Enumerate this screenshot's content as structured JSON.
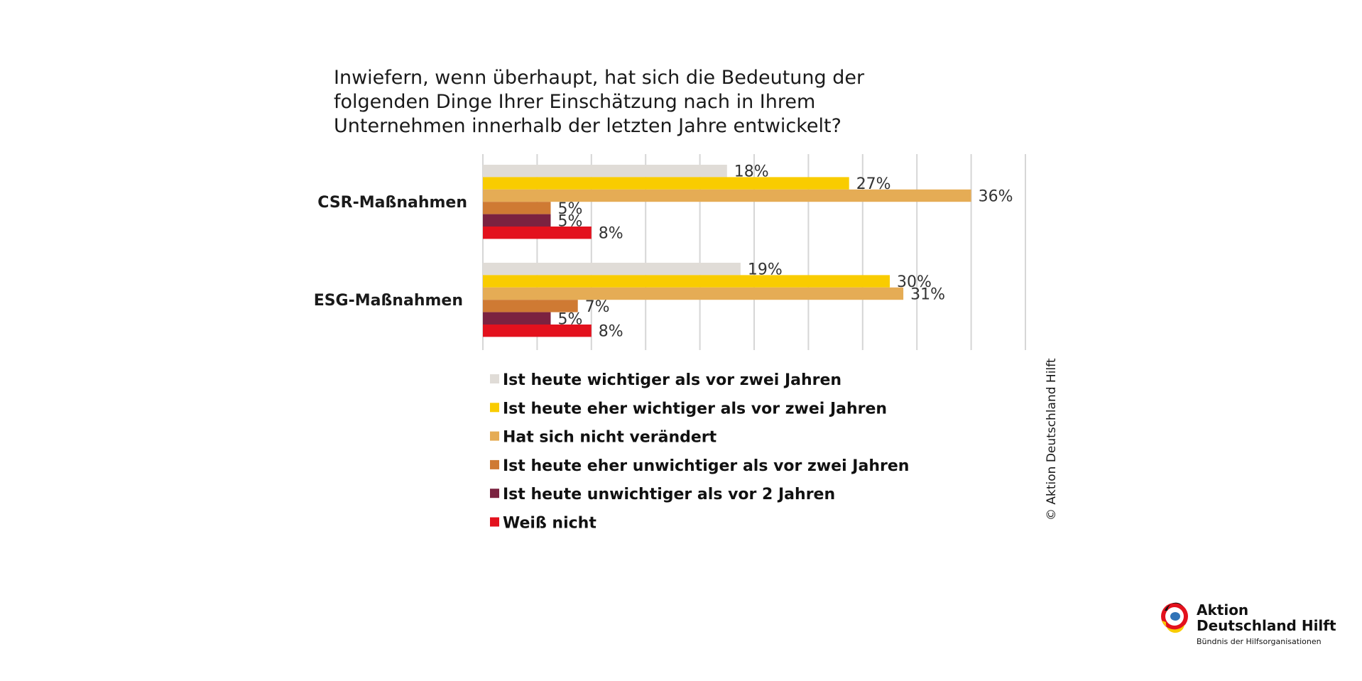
{
  "chart_data": {
    "type": "bar",
    "orientation": "horizontal",
    "title": "Inwiefern, wenn überhaupt, hat sich die Bedeutung der folgenden Dinge Ihrer Einschätzung nach in Ihrem Unternehmen innerhalb der letzten Jahre entwickelt?",
    "title_lines": [
      "Inwiefern, wenn überhaupt, hat sich die Bedeutung der",
      "folgenden Dinge Ihrer Einschätzung nach in Ihrem",
      "Unternehmen innerhalb der letzten Jahre entwickelt?"
    ],
    "categories": [
      "CSR-Maßnahmen",
      "ESG-Maßnahmen"
    ],
    "series": [
      {
        "name": "Ist heute wichtiger als vor zwei Jahren",
        "color": "#e0dcd7",
        "values": [
          18,
          19
        ]
      },
      {
        "name": "Ist heute eher wichtiger als vor zwei Jahren",
        "color": "#f9cc00",
        "values": [
          27,
          30
        ]
      },
      {
        "name": "Hat sich nicht verändert",
        "color": "#e5ac55",
        "values": [
          36,
          31
        ]
      },
      {
        "name": "Ist heute eher unwichtiger als vor zwei Jahren",
        "color": "#cf7a33",
        "values": [
          5,
          7
        ]
      },
      {
        "name": "Ist heute unwichtiger als vor 2 Jahren",
        "color": "#7b2240",
        "values": [
          5,
          5
        ]
      },
      {
        "name": "Weiß nicht",
        "color": "#e3111d",
        "values": [
          8,
          8
        ]
      }
    ],
    "value_suffix": "%",
    "xlim": [
      0,
      40
    ],
    "grid": true,
    "legend_position": "bottom"
  },
  "copyright": "© Aktion Deutschland Hilft",
  "logo": {
    "name_line1": "Aktion",
    "name_line2": "Deutschland Hilft",
    "tagline": "Bündnis der Hilfsorganisationen"
  }
}
